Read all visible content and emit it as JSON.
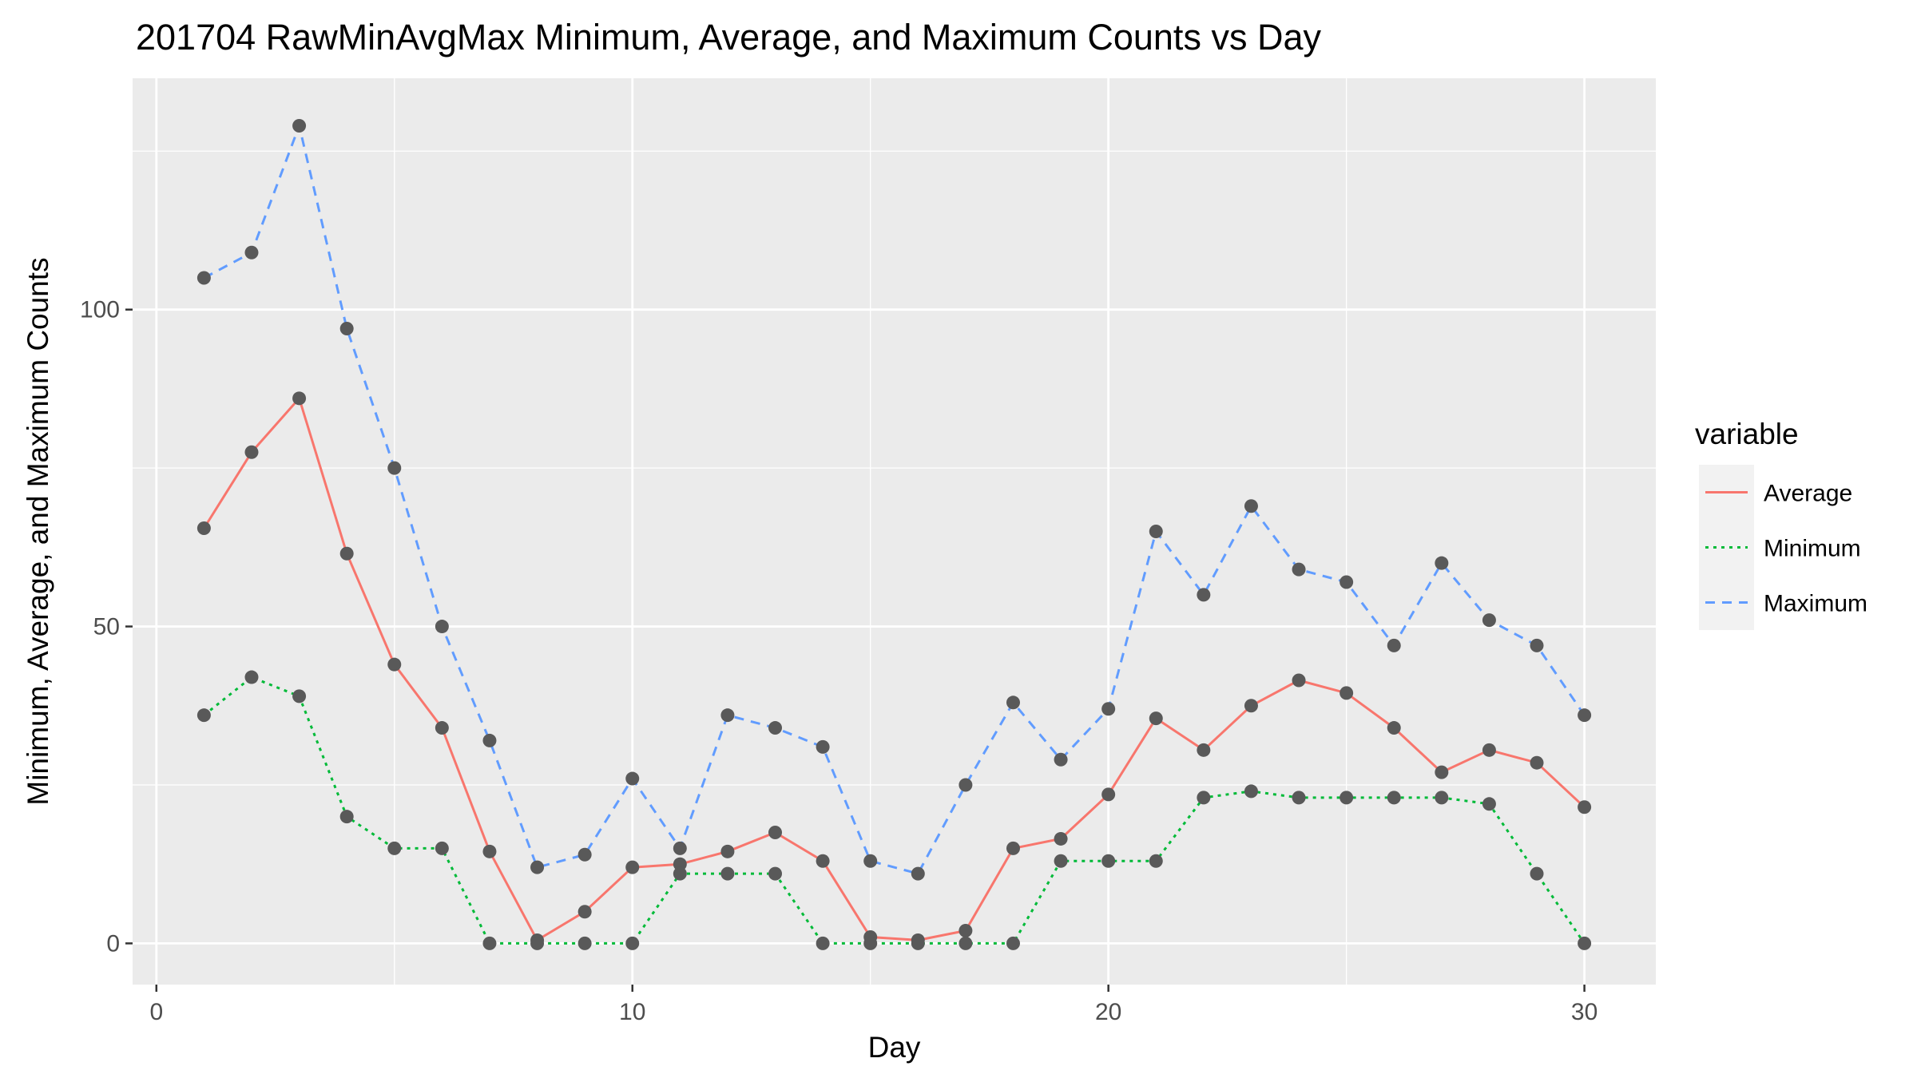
{
  "chart_data": {
    "type": "line",
    "title": "201704 RawMinAvgMax Minimum, Average, and Maximum Counts vs Day",
    "xlabel": "Day",
    "ylabel": "Minimum, Average, and Maximum Counts",
    "xlim": [
      -0.5,
      31.5
    ],
    "ylim": [
      -6.5,
      136.5
    ],
    "x_ticks": [
      0,
      10,
      20,
      30
    ],
    "y_ticks": [
      0,
      50,
      100
    ],
    "grid": true,
    "legend": {
      "title": "variable",
      "position": "right"
    },
    "x": [
      1,
      2,
      3,
      4,
      5,
      6,
      7,
      8,
      9,
      10,
      11,
      12,
      13,
      14,
      15,
      16,
      17,
      18,
      19,
      20,
      21,
      22,
      23,
      24,
      25,
      26,
      27,
      28,
      29,
      30
    ],
    "series": [
      {
        "name": "Average",
        "color": "#F8766D",
        "dash": "solid",
        "values": [
          65.5,
          77.5,
          86,
          61.5,
          44,
          34,
          14.5,
          0.5,
          5,
          12,
          12.5,
          14.5,
          17.5,
          13,
          1,
          0.5,
          2,
          15,
          16.5,
          23.5,
          35.5,
          30.5,
          37.5,
          41.5,
          39.5,
          34,
          27,
          30.5,
          28.5,
          21.5
        ]
      },
      {
        "name": "Minimum",
        "color": "#00BA38",
        "dash": "dotted",
        "values": [
          36,
          42,
          39,
          20,
          15,
          15,
          0,
          0,
          0,
          0,
          11,
          11,
          11,
          0,
          0,
          0,
          0,
          0,
          13,
          13,
          13,
          23,
          24,
          23,
          23,
          23,
          23,
          22,
          11,
          0
        ]
      },
      {
        "name": "Maximum",
        "color": "#619CFF",
        "dash": "dashed",
        "values": [
          105,
          109,
          129,
          97,
          75,
          50,
          32,
          12,
          14,
          26,
          15,
          36,
          34,
          31,
          13,
          11,
          25,
          38,
          29,
          37,
          65,
          55,
          69,
          59,
          57,
          47,
          60,
          51,
          47,
          36
        ]
      }
    ],
    "point_color": "#595959"
  }
}
